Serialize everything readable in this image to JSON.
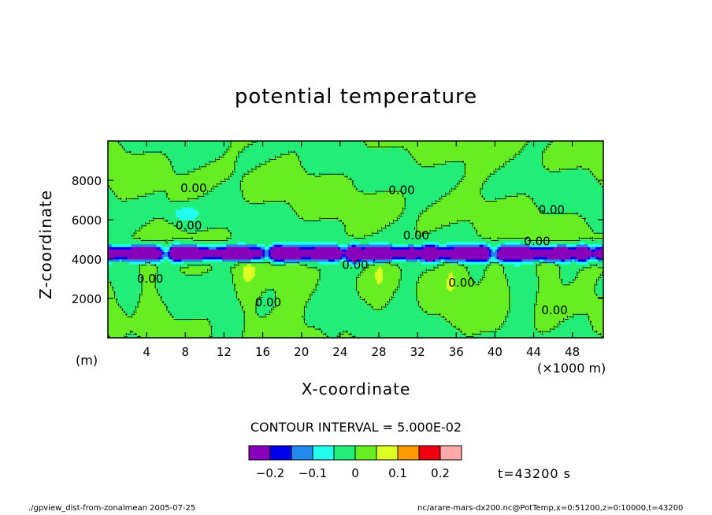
{
  "chart_data": {
    "type": "contour",
    "title": "potential temperature",
    "xlabel": "X-coordinate",
    "ylabel": "Z-coordinate",
    "x_unit_label": "(m)",
    "x_multiplier_label": "(×1000 m)",
    "xlim": [
      0,
      51.2
    ],
    "ylim": [
      0,
      10000
    ],
    "x_ticks": [
      4,
      8,
      12,
      16,
      20,
      24,
      28,
      32,
      36,
      40,
      44,
      48
    ],
    "x_tick_labels": [
      "4",
      "8",
      "12",
      "16",
      "20",
      "24",
      "28",
      "32",
      "36",
      "40",
      "44",
      "48"
    ],
    "y_ticks": [
      2000,
      4000,
      6000,
      8000
    ],
    "y_tick_labels": [
      "2000",
      "4000",
      "6000",
      "8000"
    ],
    "contour_labels": [
      {
        "x": 7.5,
        "z": 7400,
        "text": "0.00"
      },
      {
        "x": 7.0,
        "z": 5500,
        "text": "0.00"
      },
      {
        "x": 29.0,
        "z": 7300,
        "text": "0.00"
      },
      {
        "x": 44.5,
        "z": 6300,
        "text": "0.00"
      },
      {
        "x": 30.5,
        "z": 5000,
        "text": "0.00"
      },
      {
        "x": 43.0,
        "z": 4700,
        "text": "0.00"
      },
      {
        "x": 3.0,
        "z": 2800,
        "text": "0.00"
      },
      {
        "x": 15.2,
        "z": 1600,
        "text": "0.00"
      },
      {
        "x": 24.2,
        "z": 3500,
        "text": "0.00"
      },
      {
        "x": 35.2,
        "z": 2600,
        "text": "0.00"
      },
      {
        "x": 44.8,
        "z": 1200,
        "text": "0.00"
      }
    ],
    "contour_interval_text": "CONTOUR INTERVAL = 5.000E-02",
    "colorbar": {
      "colors": [
        "#8800bb",
        "#0000ee",
        "#2288ee",
        "#22ffee",
        "#22ee77",
        "#66ee22",
        "#ddff22",
        "#ff9900",
        "#ee0011",
        "#ffaaaa"
      ],
      "tick_values": [
        -0.2,
        -0.1,
        0,
        0.1,
        0.2
      ],
      "tick_labels": [
        "−0.2",
        "−0.1",
        "0",
        "0.1",
        "0.2"
      ]
    },
    "time_label": "t=43200  s",
    "footer_left": "./gpview_dist-from-zonalmean  2005-07-25",
    "footer_right": "nc/arare-mars-dx200.nc@PotTemp,x=0:51200,z=0:10000,t=43200"
  }
}
